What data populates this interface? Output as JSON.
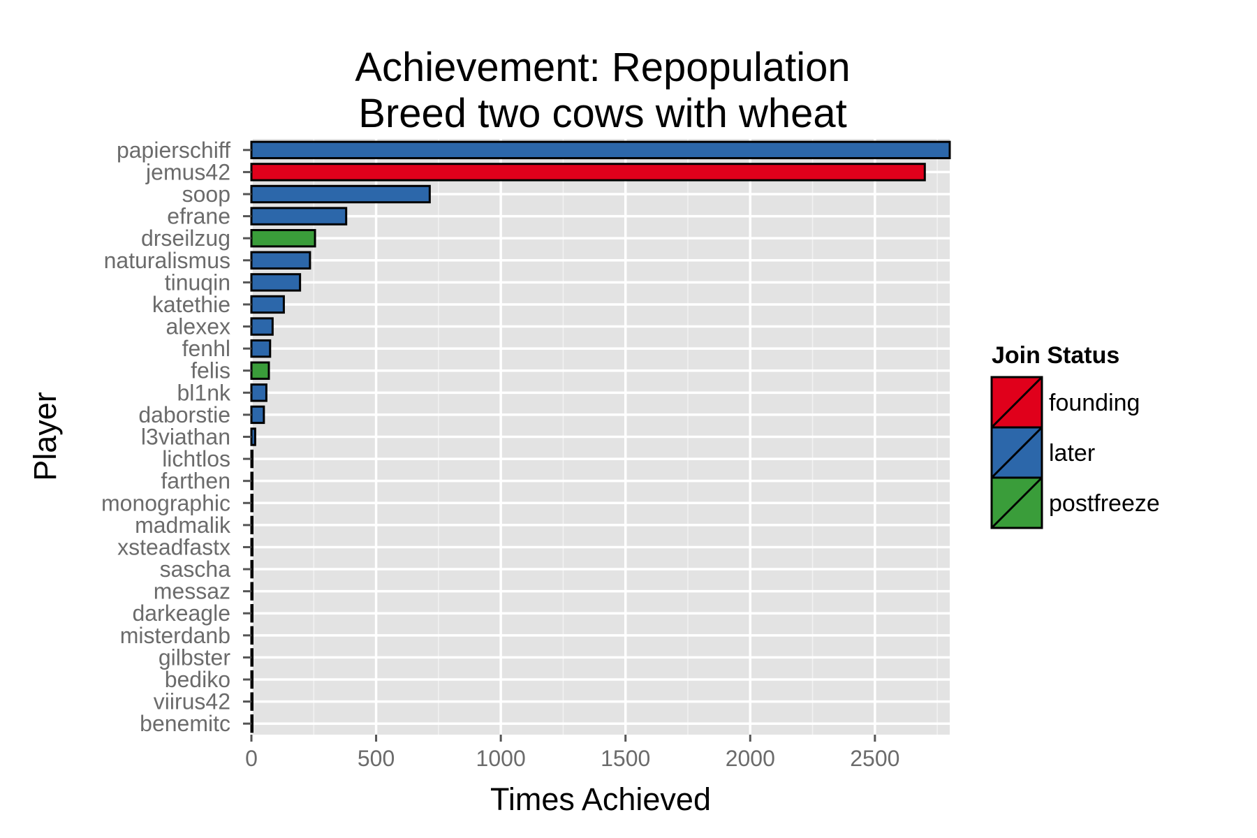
{
  "chart_data": {
    "type": "bar",
    "orientation": "horizontal",
    "title": [
      "Achievement: Repopulation",
      "Breed two cows with wheat"
    ],
    "xlabel": "Times Achieved",
    "ylabel": "Player",
    "xlim": [
      0,
      2800
    ],
    "xticks": [
      0,
      500,
      1000,
      1500,
      2000,
      2500
    ],
    "grid": true,
    "legend": {
      "title": "Join Status",
      "placement": "right",
      "entries": [
        {
          "name": "founding",
          "color": "#E0001B"
        },
        {
          "name": "later",
          "color": "#2C67AA"
        },
        {
          "name": "postfreeze",
          "color": "#3A9D3A"
        }
      ]
    },
    "categories": [
      "papierschiff",
      "jemus42",
      "soop",
      "efrane",
      "drseilzug",
      "naturalismus",
      "tinuqin",
      "katethie",
      "alexex",
      "fenhl",
      "felis",
      "bl1nk",
      "daborstie",
      "l3viathan",
      "lichtlos",
      "farthen",
      "monographic",
      "madmalik",
      "xsteadfastx",
      "sascha",
      "messaz",
      "darkeagle",
      "misterdanb",
      "gilbster",
      "bediko",
      "viirus42",
      "benemitc"
    ],
    "values": [
      2800,
      2700,
      715,
      380,
      255,
      235,
      195,
      130,
      85,
      75,
      70,
      60,
      50,
      15,
      3,
      2,
      2,
      2,
      2,
      1,
      1,
      1,
      1,
      1,
      1,
      1,
      1
    ],
    "status": [
      "later",
      "founding",
      "later",
      "later",
      "postfreeze",
      "later",
      "later",
      "later",
      "later",
      "later",
      "postfreeze",
      "later",
      "later",
      "later",
      "later",
      "later",
      "later",
      "later",
      "later",
      "later",
      "later",
      "later",
      "later",
      "later",
      "later",
      "later",
      "later"
    ]
  }
}
